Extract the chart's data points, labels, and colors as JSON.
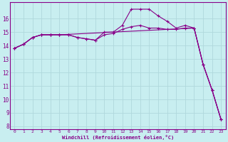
{
  "xlabel": "Windchill (Refroidissement éolien,°C)",
  "background_color": "#c8eef0",
  "grid_color": "#b0d8dc",
  "line_color": "#880088",
  "xlim": [
    -0.5,
    23.5
  ],
  "ylim": [
    7.8,
    17.2
  ],
  "yticks": [
    8,
    9,
    10,
    11,
    12,
    13,
    14,
    15,
    16
  ],
  "xticks": [
    0,
    1,
    2,
    3,
    4,
    5,
    6,
    7,
    8,
    9,
    10,
    11,
    12,
    13,
    14,
    15,
    16,
    17,
    18,
    19,
    20,
    21,
    22,
    23
  ],
  "series1_x": [
    0,
    1,
    2,
    3,
    4,
    5,
    6,
    7,
    8,
    9,
    10,
    11,
    12,
    13,
    14,
    15,
    16,
    17,
    18,
    19,
    20,
    21,
    22,
    23
  ],
  "series1_y": [
    13.8,
    14.1,
    14.6,
    14.8,
    14.8,
    14.8,
    14.8,
    14.6,
    14.5,
    14.4,
    15.0,
    15.0,
    15.5,
    16.7,
    16.7,
    16.7,
    16.2,
    15.8,
    15.3,
    15.5,
    15.3,
    12.6,
    10.7,
    8.5
  ],
  "series2_x": [
    0,
    1,
    2,
    3,
    4,
    5,
    6,
    7,
    8,
    9,
    10,
    11,
    12,
    13,
    14,
    15,
    16,
    17,
    18,
    19,
    20,
    21,
    22,
    23
  ],
  "series2_y": [
    13.8,
    14.1,
    14.6,
    14.8,
    14.8,
    14.8,
    14.8,
    14.6,
    14.5,
    14.4,
    14.8,
    14.9,
    15.2,
    15.4,
    15.5,
    15.3,
    15.3,
    15.2,
    15.2,
    15.3,
    15.3,
    12.6,
    10.7,
    8.5
  ],
  "series3_x": [
    0,
    1,
    2,
    3,
    4,
    5,
    20,
    21,
    22,
    23
  ],
  "series3_y": [
    13.8,
    14.1,
    14.6,
    14.8,
    14.8,
    14.8,
    15.3,
    12.6,
    10.7,
    8.5
  ]
}
